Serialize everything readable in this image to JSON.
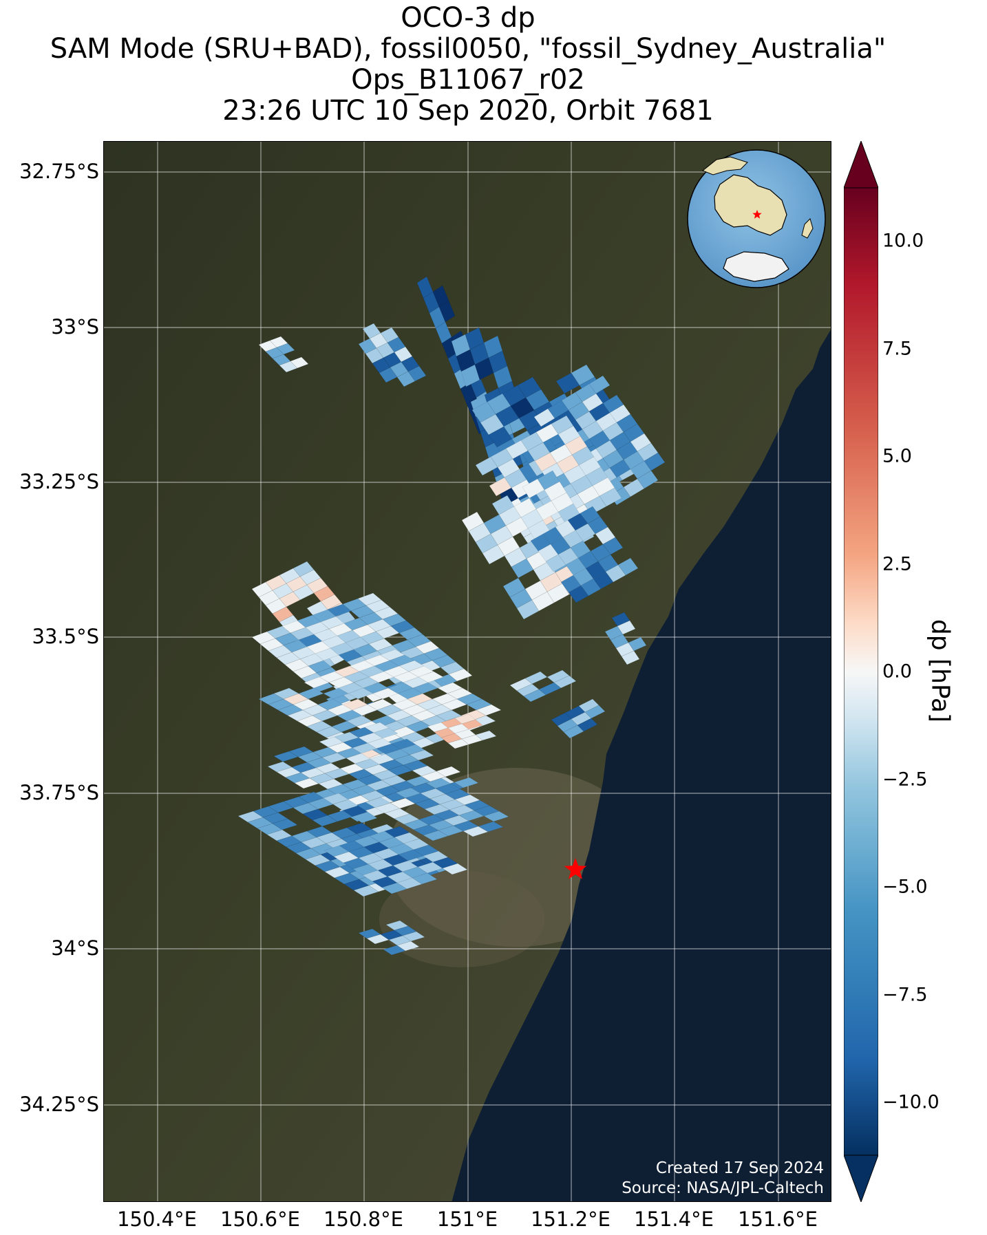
{
  "title": {
    "line1": "OCO-3 dp",
    "line2": "SAM Mode (SRU+BAD), fossil0050, \"fossil_Sydney_Australia\"",
    "line3": "Ops_B11067_r02",
    "line4": "23:26 UTC 10 Sep 2020, Orbit 7681"
  },
  "axes": {
    "lat_ticks": [
      "32.75°S",
      "33°S",
      "33.25°S",
      "33.5°S",
      "33.75°S",
      "34°S",
      "34.25°S"
    ],
    "lon_ticks": [
      "150.4°E",
      "150.6°E",
      "150.8°E",
      "151°E",
      "151.2°E",
      "151.4°E",
      "151.6°E"
    ]
  },
  "colorbar": {
    "label": "dp [hPa]",
    "ticks": [
      "10.0",
      "7.5",
      "5.0",
      "2.5",
      "0.0",
      "−2.5",
      "−5.0",
      "−7.5",
      "−10.0"
    ],
    "colormap": "RdBu_r",
    "range": [
      -12,
      12
    ],
    "extend": "both"
  },
  "credit": {
    "created": "Created 17 Sep 2024",
    "source": "Source: NASA/JPL-Caltech"
  },
  "map": {
    "target_marker": "red-star",
    "target_name": "fossil_Sydney_Australia",
    "inset": "globe-centered-on-australia"
  },
  "colors": {
    "land": "#3a3f2a",
    "ocean": "#0f1f33",
    "star": "#ff0000"
  }
}
